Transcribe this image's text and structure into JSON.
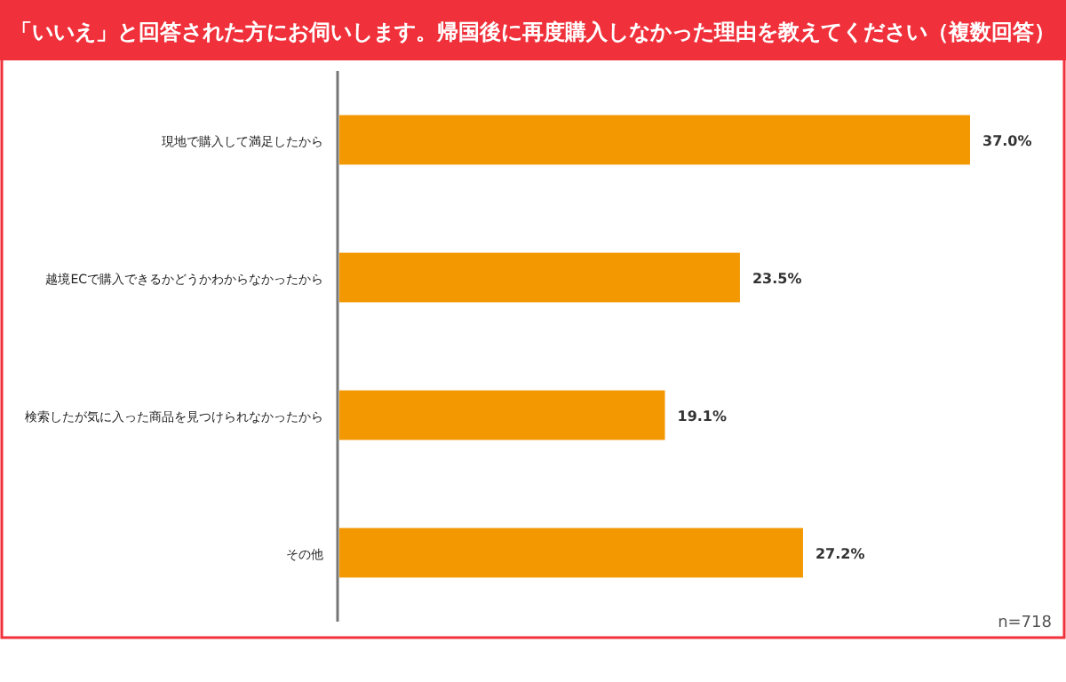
{
  "chart_data": {
    "type": "bar",
    "orientation": "horizontal",
    "title": "「いいえ」と回答された方にお伺いします。帰国後に再度購入しなかった理由を教えてください（複数回答）",
    "categories": [
      "現地で購入して満足したから",
      "越境ECで購入できるかどうかわからなかったから",
      "検索したが気に入った商品を見つけられなかったから",
      "その他"
    ],
    "values": [
      37.0,
      23.5,
      19.1,
      27.2
    ],
    "value_labels": [
      "37.0%",
      "23.5%",
      "19.1%",
      "27.2%"
    ],
    "color": "#f39800",
    "annotations": [
      "n=718"
    ]
  }
}
